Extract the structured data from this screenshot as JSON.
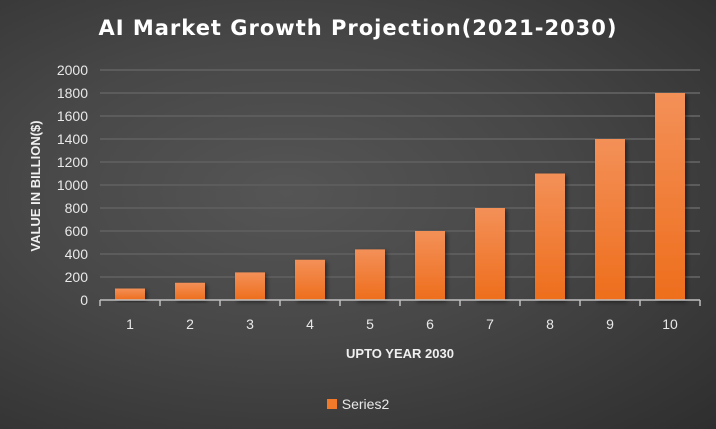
{
  "chart_data": {
    "type": "bar",
    "title": "AI Market Growth Projection(2021-2030)",
    "xlabel": "UPTO YEAR 2030",
    "ylabel": "VALUE IN BILLION($)",
    "categories": [
      "1",
      "2",
      "3",
      "4",
      "5",
      "6",
      "7",
      "8",
      "9",
      "10"
    ],
    "series": [
      {
        "name": "Series2",
        "values": [
          100,
          150,
          240,
          350,
          440,
          600,
          800,
          1100,
          1400,
          1800
        ]
      }
    ],
    "ylim": [
      0,
      2000
    ],
    "yticks": [
      0,
      200,
      400,
      600,
      800,
      1000,
      1200,
      1400,
      1600,
      1800,
      2000
    ],
    "grid": true,
    "legend": "bottom",
    "colors": {
      "bar": "#f07a2a",
      "background": "#474747"
    }
  }
}
